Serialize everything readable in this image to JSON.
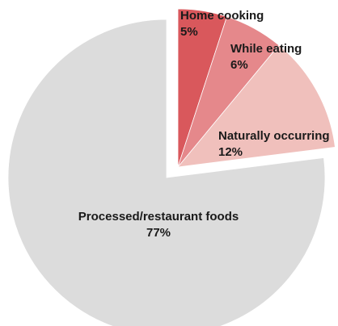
{
  "chart_data": {
    "type": "pie",
    "slices": [
      {
        "name": "Home cooking",
        "value": 5,
        "label": "5%",
        "color": "#d9585c"
      },
      {
        "name": "While eating",
        "value": 6,
        "label": "6%",
        "color": "#e5888b"
      },
      {
        "name": "Naturally occurring",
        "value": 12,
        "label": "12%",
        "color": "#f0c0bc"
      },
      {
        "name": "Processed/restaurant foods",
        "value": 77,
        "label": "77%",
        "color": "#dcdcdc"
      }
    ],
    "start_angle_deg": 0,
    "exploded_slices": [
      "Home cooking",
      "While eating",
      "Naturally occurring"
    ]
  }
}
